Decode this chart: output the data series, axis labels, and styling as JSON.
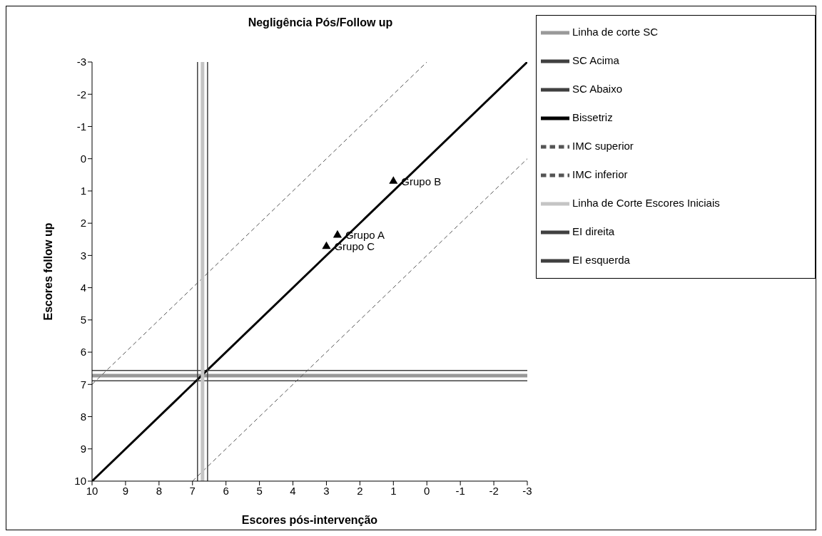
{
  "chart_data": {
    "type": "line",
    "title": "Negligência Pós/Follow up",
    "xlabel": "Escores pós-intervenção",
    "ylabel": "Escores follow up",
    "xlim": [
      10,
      -3
    ],
    "xticks": [
      10,
      9,
      8,
      7,
      6,
      5,
      4,
      3,
      2,
      1,
      0,
      -1,
      -2,
      -3
    ],
    "ylim": [
      10,
      -3
    ],
    "yticks": [
      -3,
      -2,
      -1,
      0,
      1,
      2,
      3,
      4,
      5,
      6,
      7,
      8,
      9,
      10
    ],
    "grid": false,
    "legend": "right",
    "marker": "none",
    "series": [
      {
        "name": "Linha de corte SC",
        "color": "#999999",
        "x": [
          10,
          -3
        ],
        "values": [
          6.73,
          6.73
        ],
        "line_style": "solid"
      },
      {
        "name": "SC Acima",
        "color": "#404040",
        "x": [
          10,
          -3
        ],
        "values": [
          6.57,
          6.57
        ],
        "line_style": "solid"
      },
      {
        "name": "SC Abaixo",
        "color": "#404040",
        "x": [
          10,
          -3
        ],
        "values": [
          6.89,
          6.89
        ],
        "line_style": "solid"
      },
      {
        "name": "Bissetriz",
        "color": "#000000",
        "x": [
          10,
          -3
        ],
        "values": [
          10,
          -3
        ],
        "line_style": "solid"
      },
      {
        "name": "IMC superior",
        "color": "#555555",
        "x": [
          10,
          0
        ],
        "values": [
          7,
          -3
        ],
        "line_style": "dashed"
      },
      {
        "name": "IMC inferior",
        "color": "#555555",
        "x": [
          7,
          -3
        ],
        "values": [
          10,
          0
        ],
        "line_style": "dashed"
      },
      {
        "name": "Linha de Corte Escores Iniciais",
        "color": "#c4c4c4",
        "x": [
          6.7,
          6.7
        ],
        "values": [
          10,
          -3
        ],
        "line_style": "solid"
      },
      {
        "name": "EI direita",
        "color": "#404040",
        "x": [
          6.55,
          6.55
        ],
        "values": [
          10,
          -3
        ],
        "line_style": "solid"
      },
      {
        "name": "EI esquerda",
        "color": "#404040",
        "x": [
          6.85,
          6.85
        ],
        "values": [
          10,
          -3
        ],
        "line_style": "solid"
      },
      {
        "type": "scatter",
        "marker": "triangle",
        "color": "#000000",
        "x": [
          2.67,
          1,
          3
        ],
        "values": [
          2.37,
          0.7,
          2.72
        ]
      }
    ],
    "annotations": [
      {
        "text": "Grupo A",
        "x": 2.67,
        "y": 2.37
      },
      {
        "text": "Grupo B",
        "x": 1,
        "y": 0.7
      },
      {
        "text": "Grupo C",
        "x": 3,
        "y": 2.72
      }
    ]
  }
}
